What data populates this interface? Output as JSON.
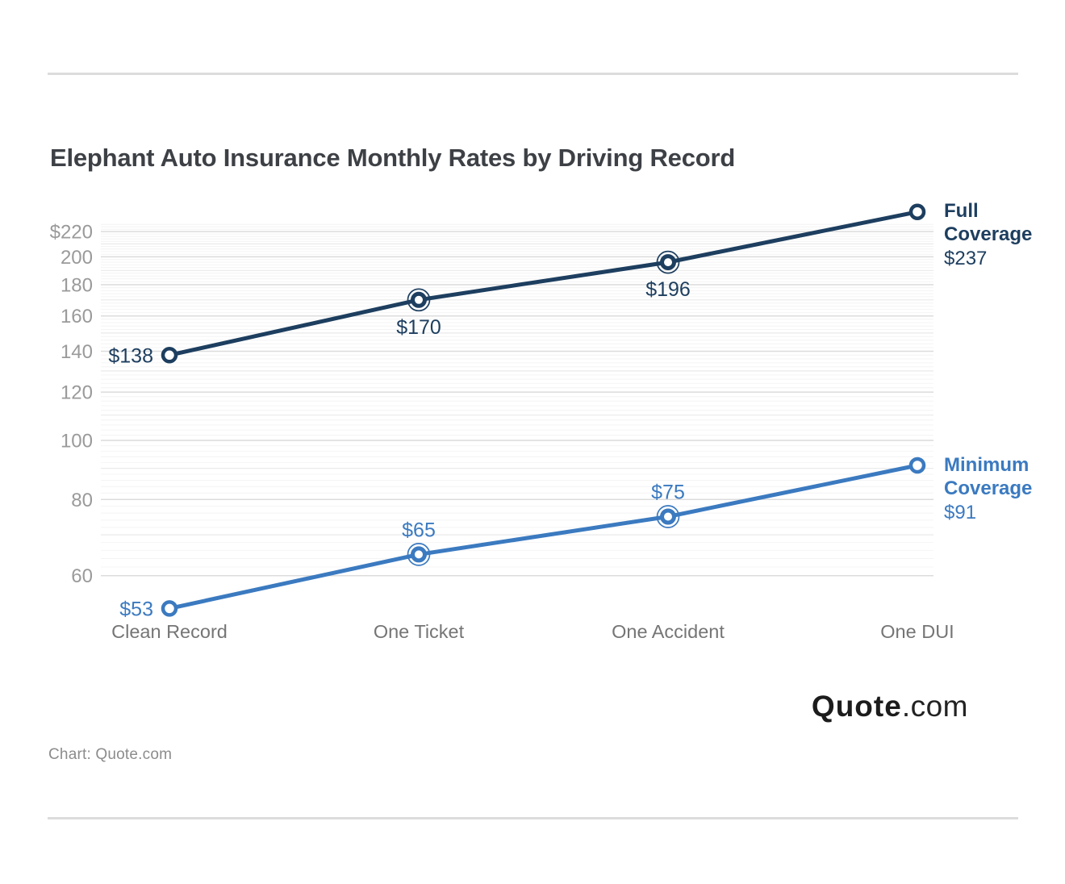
{
  "page": {
    "credit": "Chart: Quote.com",
    "logo": {
      "bold": "Quote",
      "suffix": ".com"
    }
  },
  "chart_data": {
    "type": "line",
    "title": "Elephant Auto Insurance Monthly Rates by Driving Record",
    "categories": [
      "Clean Record",
      "One Ticket",
      "One Accident",
      "One DUI"
    ],
    "series": [
      {
        "name": "Full Coverage",
        "color": "#1d3e5f",
        "values": [
          138,
          170,
          196,
          237
        ],
        "point_labels": [
          "$138",
          "$170",
          "$196",
          "$237"
        ],
        "label_positions": [
          "left",
          "below",
          "below",
          "end"
        ],
        "end_label": {
          "name": "Full Coverage",
          "value": "$237"
        }
      },
      {
        "name": "Minimum Coverage",
        "color": "#3b7ac0",
        "values": [
          53,
          65,
          75,
          91
        ],
        "point_labels": [
          "$53",
          "$65",
          "$75",
          "$91"
        ],
        "label_positions": [
          "left",
          "above",
          "above",
          "end"
        ],
        "end_label": {
          "name": "Minimum Coverage",
          "value": "$91"
        }
      }
    ],
    "y_axis": {
      "scale": "log",
      "grid": true,
      "shown_range": [
        60,
        226
      ],
      "minor_step": 2,
      "ticks": [
        {
          "value": 220,
          "label": "$220"
        },
        {
          "value": 200,
          "label": "200"
        },
        {
          "value": 180,
          "label": "180"
        },
        {
          "value": 160,
          "label": "160"
        },
        {
          "value": 140,
          "label": "140"
        },
        {
          "value": 120,
          "label": "120"
        },
        {
          "value": 100,
          "label": "100"
        },
        {
          "value": 80,
          "label": "80"
        },
        {
          "value": 60,
          "label": "60"
        }
      ]
    },
    "x_axis": {
      "labels": [
        "Clean Record",
        "One Ticket",
        "One Accident",
        "One DUI"
      ]
    },
    "legend_position": "right-end-labels"
  }
}
